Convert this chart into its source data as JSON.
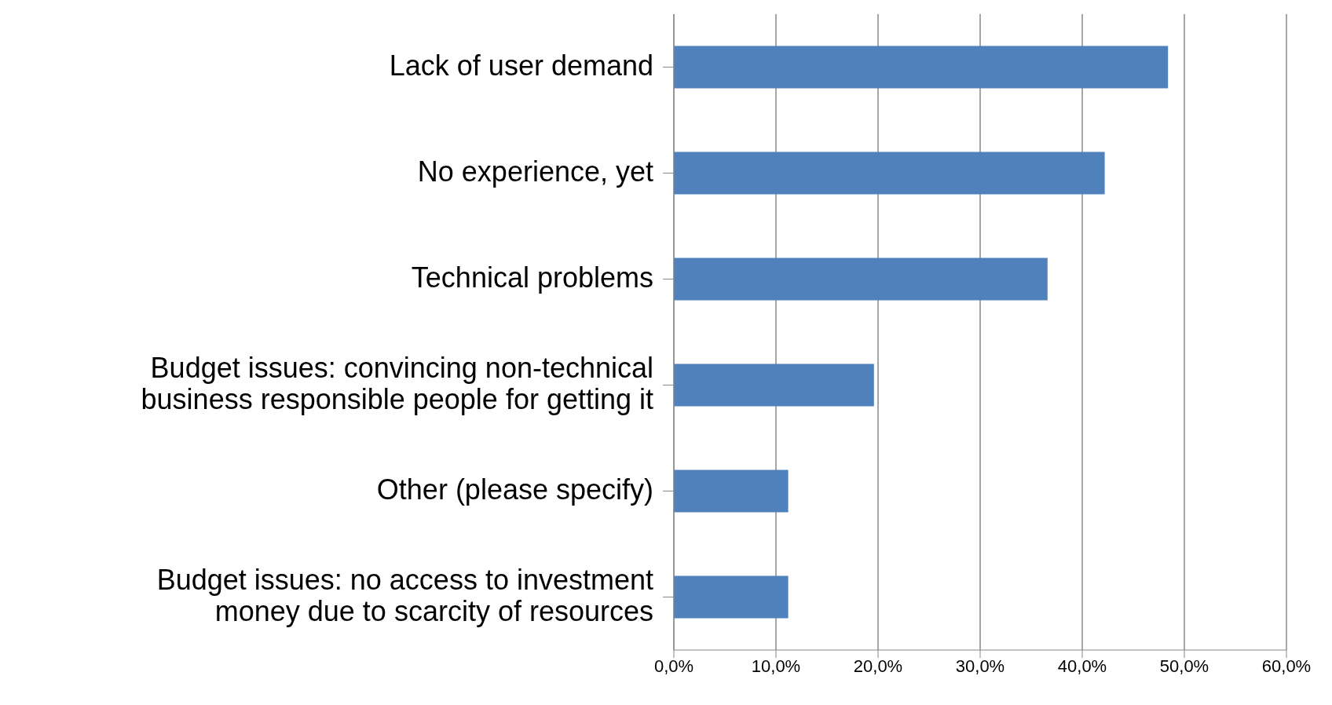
{
  "chart_data": {
    "type": "bar",
    "orientation": "horizontal",
    "categories": [
      "Lack of user demand",
      "No experience, yet",
      "Technical problems",
      "Budget issues: convincing non-technical business responsible people for getting it",
      "Other (please specify)",
      "Budget issues: no access to investment money due to scarcity of resources"
    ],
    "values": [
      48.4,
      42.2,
      36.6,
      19.6,
      11.2,
      11.2
    ],
    "color": "#4f81bd",
    "xlim": [
      0,
      60
    ],
    "xticks": [
      {
        "value": 0,
        "label": "0,0%"
      },
      {
        "value": 10,
        "label": "10,0%"
      },
      {
        "value": 20,
        "label": "20,0%"
      },
      {
        "value": 30,
        "label": "30,0%"
      },
      {
        "value": 40,
        "label": "40,0%"
      },
      {
        "value": 50,
        "label": "50,0%"
      },
      {
        "value": 60,
        "label": "60,0%"
      }
    ],
    "grid": "x",
    "legend": false
  }
}
